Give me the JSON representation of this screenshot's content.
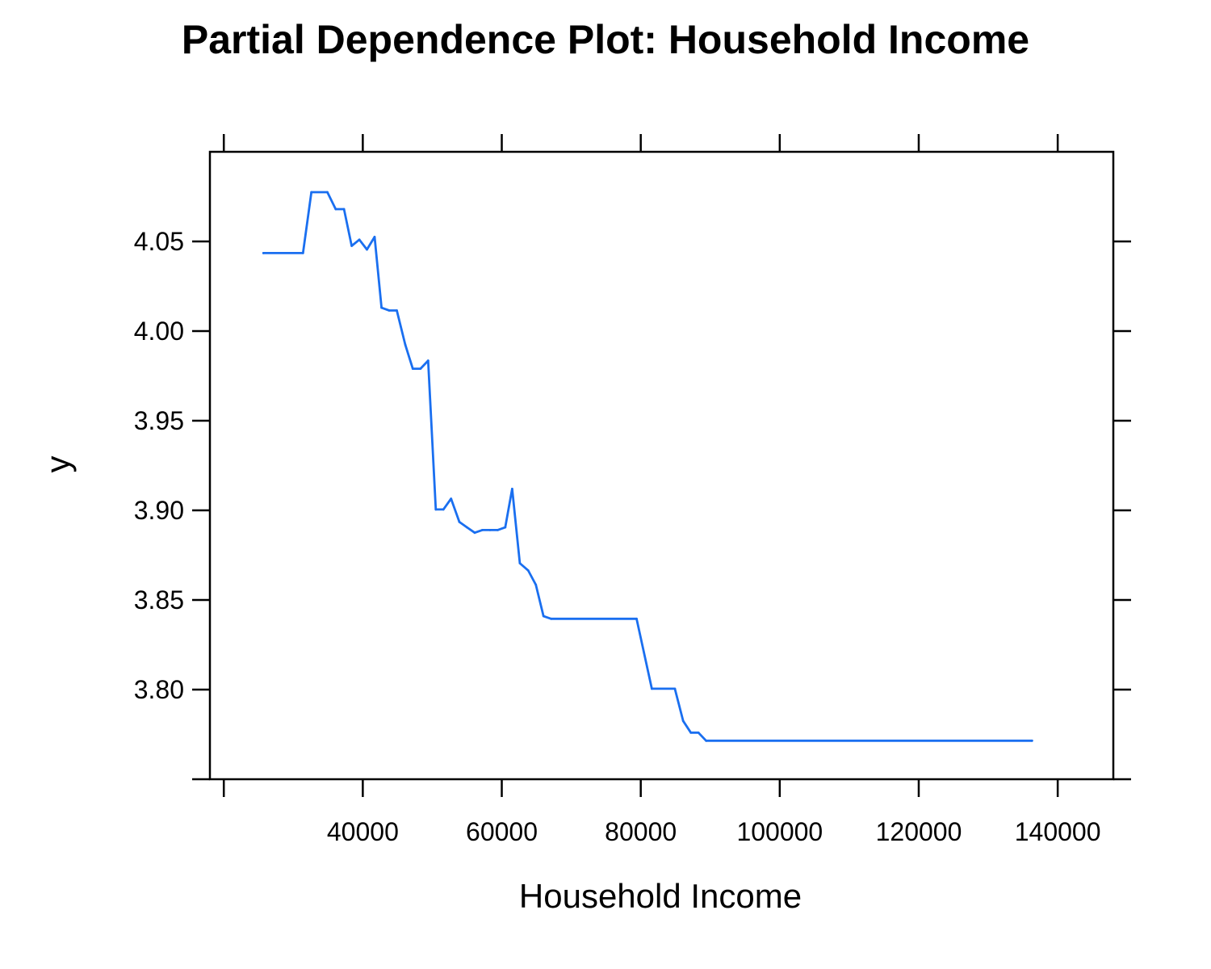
{
  "chart_data": {
    "type": "line",
    "title": "Partial Dependence Plot: Household Income",
    "xlabel": "Household Income",
    "ylabel": "y",
    "xlim": [
      18000,
      148000
    ],
    "ylim": [
      3.75,
      4.1
    ],
    "x_ticks": [
      20000,
      40000,
      60000,
      80000,
      100000,
      120000,
      140000
    ],
    "x_tick_labels": [
      "",
      "40000",
      "60000",
      "80000",
      "100000",
      "120000",
      "140000"
    ],
    "y_ticks": [
      3.75,
      3.8,
      3.85,
      3.9,
      3.95,
      4.0,
      4.05
    ],
    "y_tick_labels": [
      "",
      "3.80",
      "3.85",
      "3.90",
      "3.95",
      "4.00",
      "4.05"
    ],
    "grid": false,
    "line_color": "#1a6ff0",
    "series": [
      {
        "points": [
          [
            25700,
            4.0435
          ],
          [
            31400,
            4.0435
          ],
          [
            32600,
            4.0775
          ],
          [
            34900,
            4.0775
          ],
          [
            36100,
            4.068
          ],
          [
            37300,
            4.068
          ],
          [
            38400,
            4.0475
          ],
          [
            39500,
            4.051
          ],
          [
            40600,
            4.0455
          ],
          [
            41700,
            4.0525
          ],
          [
            42700,
            4.013
          ],
          [
            43800,
            4.0115
          ],
          [
            44900,
            4.0115
          ],
          [
            46100,
            3.9925
          ],
          [
            47200,
            3.979
          ],
          [
            48300,
            3.979
          ],
          [
            49400,
            3.9835
          ],
          [
            50500,
            3.9005
          ],
          [
            51600,
            3.9005
          ],
          [
            52700,
            3.9065
          ],
          [
            53900,
            3.8935
          ],
          [
            55000,
            3.8905
          ],
          [
            56100,
            3.8875
          ],
          [
            57200,
            3.889
          ],
          [
            58300,
            3.889
          ],
          [
            59400,
            3.889
          ],
          [
            60500,
            3.8905
          ],
          [
            61500,
            3.912
          ],
          [
            62600,
            3.8705
          ],
          [
            63800,
            3.8665
          ],
          [
            64900,
            3.8585
          ],
          [
            66000,
            3.841
          ],
          [
            67100,
            3.8395
          ],
          [
            79400,
            3.8395
          ],
          [
            81600,
            3.8005
          ],
          [
            84900,
            3.8005
          ],
          [
            86100,
            3.7825
          ],
          [
            87200,
            3.776
          ],
          [
            88300,
            3.776
          ],
          [
            89400,
            3.7715
          ],
          [
            136300,
            3.7715
          ]
        ]
      }
    ]
  }
}
